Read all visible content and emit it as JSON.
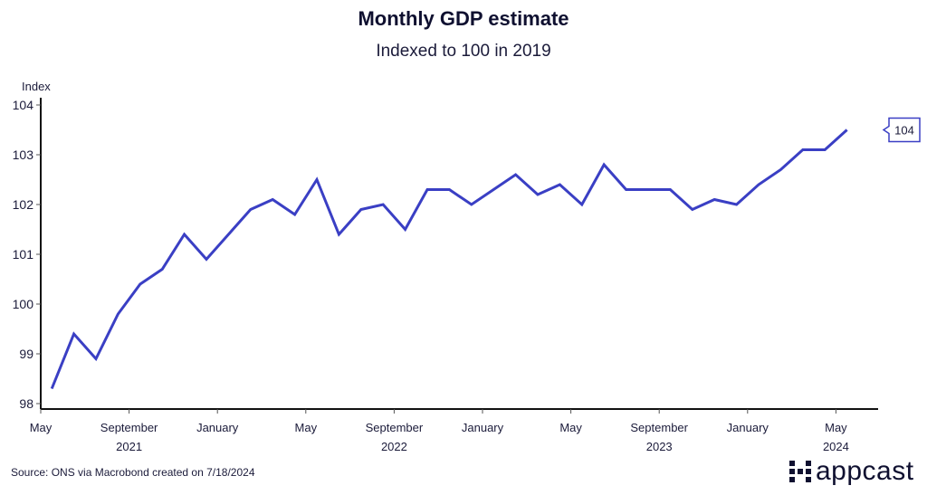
{
  "chart_data": {
    "type": "line",
    "title": "Monthly GDP estimate",
    "subtitle": "Indexed to 100 in 2019",
    "ylabel": "Index",
    "xlabel": "",
    "ylim": [
      98,
      104
    ],
    "yticks": [
      98,
      99,
      100,
      101,
      102,
      103,
      104
    ],
    "xticks": [
      {
        "label": "May",
        "month_index": 0
      },
      {
        "label": "September",
        "month_index": 4
      },
      {
        "label": "January",
        "month_index": 8
      },
      {
        "label": "May",
        "month_index": 12
      },
      {
        "label": "September",
        "month_index": 16
      },
      {
        "label": "January",
        "month_index": 20
      },
      {
        "label": "May",
        "month_index": 24
      },
      {
        "label": "September",
        "month_index": 28
      },
      {
        "label": "January",
        "month_index": 32
      },
      {
        "label": "May",
        "month_index": 36
      }
    ],
    "year_labels": [
      {
        "label": "2021",
        "month_index": 4
      },
      {
        "label": "2022",
        "month_index": 16
      },
      {
        "label": "2023",
        "month_index": 28
      },
      {
        "label": "2024",
        "month_index": 36
      }
    ],
    "x_start": "May 2021",
    "x_end": "May 2024",
    "grid": false,
    "series": [
      {
        "name": "Monthly GDP estimate",
        "color": "#3a3fc4",
        "values": [
          98.3,
          99.4,
          98.9,
          99.8,
          100.4,
          100.7,
          101.4,
          100.9,
          101.4,
          101.9,
          102.1,
          101.8,
          102.5,
          101.4,
          101.9,
          102.0,
          101.5,
          102.3,
          102.3,
          102.0,
          102.3,
          102.6,
          102.2,
          102.4,
          102.0,
          102.8,
          102.3,
          102.3,
          102.3,
          101.9,
          102.1,
          102.0,
          102.4,
          102.7,
          103.1,
          103.1,
          103.5
        ],
        "last_value_label": "104"
      }
    ]
  },
  "footer": {
    "source": "Source: ONS via Macrobond created on 7/18/2024",
    "logo_text": "appcast"
  }
}
